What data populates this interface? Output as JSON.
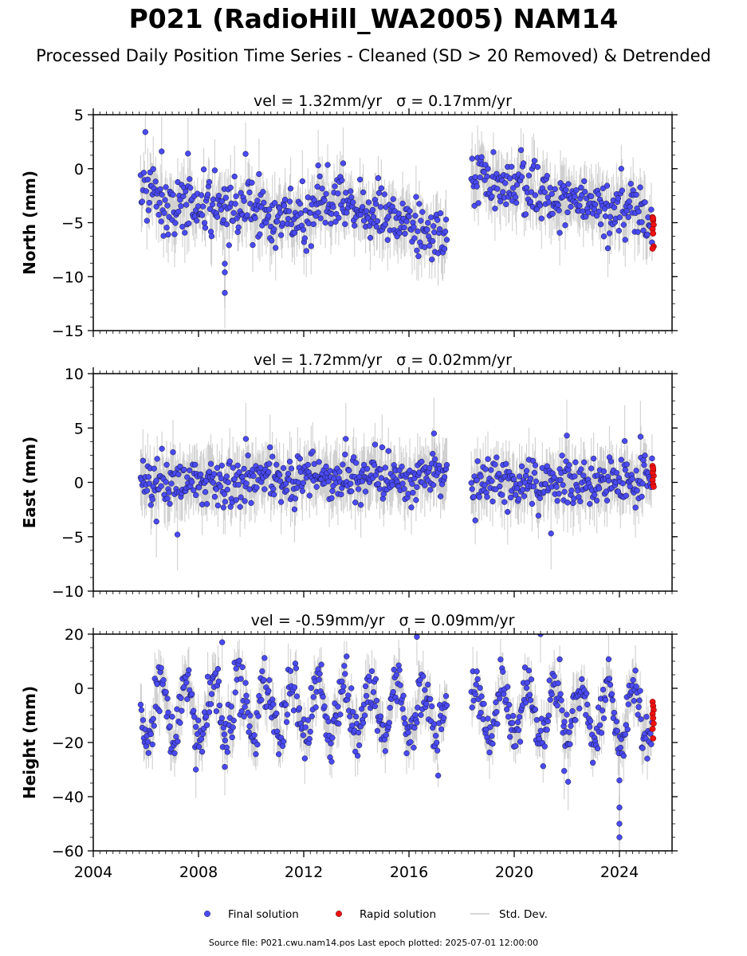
{
  "title": "P021 (RadioHill_WA2005) NAM14",
  "subtitle": "Processed Daily Position Time Series - Cleaned (SD > 20 Removed) & Detrended",
  "source": "Source file: P021.cwu.nam14.pos  Last epoch plotted: 2025-07-01 12:00:00",
  "chart_data": {
    "type": "scatter",
    "xlim": [
      2004,
      2026
    ],
    "xticks": [
      2004,
      2008,
      2012,
      2016,
      2020,
      2024
    ],
    "x_minor_step_years": 0.25,
    "data_gap": [
      2017.45,
      2018.35
    ],
    "final_span": [
      2005.8,
      2025.25
    ],
    "rapid_span": [
      2025.25,
      2025.5
    ],
    "colors": {
      "final": "#4a4af4",
      "final_edge": "#111133",
      "rapid": "#ee1111",
      "rapid_edge": "#660000",
      "sd": "#b0b0b0"
    },
    "legend": {
      "position": "bottom-center",
      "items": [
        {
          "label": "Final solution",
          "symbol": "dot",
          "color": "#4a4af4"
        },
        {
          "label": "Rapid solution",
          "symbol": "dot",
          "color": "#ee1111"
        },
        {
          "label": "Std. Dev.",
          "symbol": "line",
          "color": "#c8c8c8"
        }
      ]
    },
    "panels": [
      {
        "component": "north",
        "ylabel": "North (mm)",
        "heading": "vel = 1.32mm/yr   σ = 0.17mm/yr",
        "ylim": [
          -15,
          5
        ],
        "yticks": [
          5,
          0,
          -5,
          -10,
          -15
        ],
        "ytick_labels": [
          "5",
          "0",
          "−5",
          "−10",
          "−15"
        ],
        "trend": [
          [
            2005.8,
            -2.0
          ],
          [
            2008,
            -3.5
          ],
          [
            2012,
            -5.0
          ],
          [
            2012.6,
            -3.0
          ],
          [
            2015,
            -4.5
          ],
          [
            2017.4,
            -6.5
          ],
          [
            2018.3,
            -1.0
          ],
          [
            2019.5,
            -2.0
          ],
          [
            2020,
            -1.0
          ],
          [
            2021.5,
            -3.0
          ],
          [
            2025.3,
            -4.5
          ]
        ],
        "noise_sd": 1.4,
        "sd_len": 2.2,
        "outliers": [
          [
            2009.0,
            -11.5
          ],
          [
            2009.0,
            -9.6
          ],
          [
            2009.0,
            -8.8
          ],
          [
            2012.55,
            0.3
          ],
          [
            2013.5,
            0.5
          ],
          [
            2006.6,
            1.6
          ],
          [
            2007.6,
            1.4
          ],
          [
            2010.3,
            -0.5
          ]
        ],
        "rapid": [
          -4.5,
          -4.8,
          -5.2,
          -5.6,
          -6.0,
          -7.2,
          -7.4,
          -4.6
        ]
      },
      {
        "component": "east",
        "ylabel": "East (mm)",
        "heading": "vel = 1.72mm/yr   σ = 0.02mm/yr",
        "ylim": [
          -10,
          10
        ],
        "yticks": [
          10,
          5,
          0,
          -5,
          -10
        ],
        "ytick_labels": [
          "10",
          "5",
          "0",
          "−5",
          "−10"
        ],
        "trend": [
          [
            2005.8,
            0.0
          ],
          [
            2008,
            -0.2
          ],
          [
            2012,
            0.3
          ],
          [
            2017.4,
            0.5
          ],
          [
            2018.3,
            0.0
          ],
          [
            2025.3,
            0.2
          ]
        ],
        "noise_sd": 1.1,
        "sd_len": 2.2,
        "outliers": [
          [
            2006.4,
            -3.6
          ],
          [
            2007.2,
            -4.8
          ],
          [
            2021.4,
            -4.7
          ],
          [
            2016.95,
            4.5
          ],
          [
            2022.0,
            4.3
          ],
          [
            2024.2,
            3.8
          ],
          [
            2024.8,
            4.2
          ],
          [
            2009.8,
            4.0
          ],
          [
            2013.6,
            4.0
          ]
        ],
        "rapid": [
          1.5,
          1.1,
          0.6,
          0.2,
          -0.2,
          -0.4,
          0.9,
          1.3
        ]
      },
      {
        "component": "height",
        "ylabel": "Height (mm)",
        "heading": "vel = -0.59mm/yr   σ = 0.09mm/yr",
        "ylim": [
          -60,
          20
        ],
        "yticks": [
          20,
          0,
          -20,
          -40,
          -60
        ],
        "ytick_labels": [
          "20",
          "0",
          "−20",
          "−40",
          "−60"
        ],
        "trend": [
          [
            2005.8,
            -8.0
          ],
          [
            2017.4,
            -8.0
          ],
          [
            2018.3,
            -9.0
          ],
          [
            2025.3,
            -9.0
          ]
        ],
        "seasonal_amp": 10,
        "noise_sd": 4.5,
        "sd_len": 7.0,
        "outliers": [
          [
            2024.0,
            -34.0
          ],
          [
            2024.0,
            -44.0
          ],
          [
            2024.0,
            -50.0
          ],
          [
            2024.0,
            -55.0
          ],
          [
            2007.9,
            -30.0
          ],
          [
            2009.0,
            -29.0
          ],
          [
            2021.9,
            -30.5
          ],
          [
            2022.05,
            -34.5
          ],
          [
            2008.9,
            17.0
          ],
          [
            2016.3,
            19.0
          ],
          [
            2021.0,
            20.0
          ]
        ],
        "rapid": [
          -5.0,
          -6.5,
          -8.0,
          -9.5,
          -11.0,
          -13.0,
          -15.0,
          -18.5
        ]
      }
    ]
  }
}
